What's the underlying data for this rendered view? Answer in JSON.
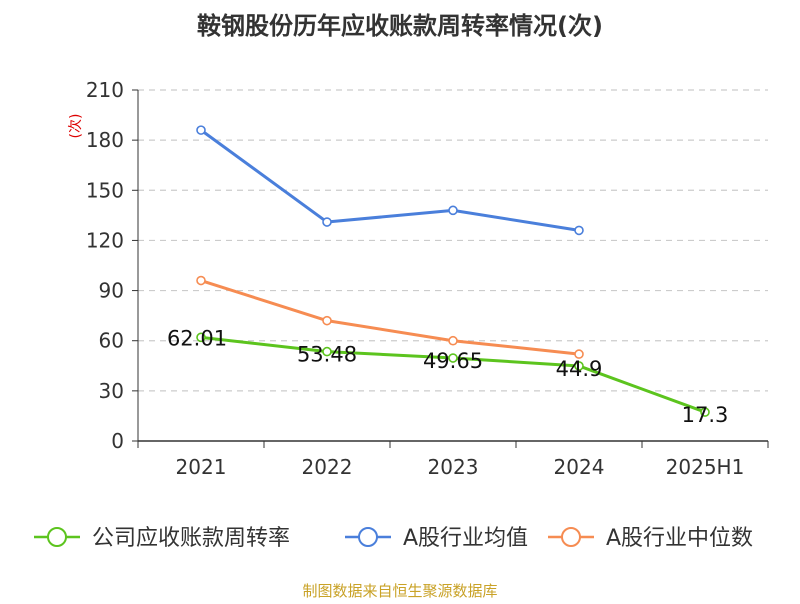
{
  "chart_data": {
    "type": "line",
    "title": "鞍钢股份历年应收账款周转率情况(次)",
    "ylabel": "(次)",
    "xlabel": "",
    "categories": [
      "2021",
      "2022",
      "2023",
      "2024",
      "2025H1"
    ],
    "ylim": [
      0,
      210
    ],
    "yticks": [
      0,
      30,
      60,
      90,
      120,
      150,
      180,
      210
    ],
    "grid": true,
    "legend_position": "bottom",
    "series": [
      {
        "name": "公司应收账款周转率",
        "color": "#5cc41e",
        "values": [
          62.01,
          53.48,
          49.65,
          44.9,
          17.3
        ],
        "labels": [
          "62.01",
          "53.48",
          "49.65",
          "44.9",
          "17.3"
        ]
      },
      {
        "name": "A股行业均值",
        "color": "#4a7fdb",
        "values": [
          186,
          131,
          138,
          126,
          null
        ]
      },
      {
        "name": "A股行业中位数",
        "color": "#f68c52",
        "values": [
          96,
          72,
          60,
          52,
          null
        ]
      }
    ]
  },
  "source": "制图数据来自恒生聚源数据库",
  "colors": {
    "title": "#333333",
    "axis": "#333333",
    "grid": "#cccccc",
    "ylabel": "#dd0000",
    "source": "#c9a227"
  }
}
